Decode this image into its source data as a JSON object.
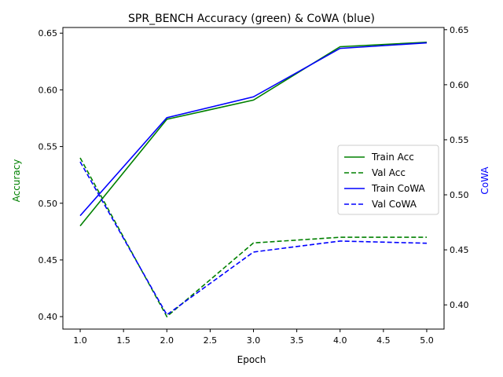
{
  "chart_data": {
    "type": "line",
    "title": "SPR_BENCH Accuracy (green) & CoWA (blue)",
    "xlabel": "Epoch",
    "ylabel_left": "Accuracy",
    "ylabel_right": "CoWA",
    "x": [
      1,
      2,
      3,
      4,
      5
    ],
    "xlim": [
      0.8,
      5.2
    ],
    "ylim_left": [
      0.389,
      0.655
    ],
    "ylim_right": [
      0.378,
      0.652
    ],
    "x_ticks": [
      "1.0",
      "1.5",
      "2.0",
      "2.5",
      "3.0",
      "3.5",
      "4.0",
      "4.5",
      "5.0"
    ],
    "y_ticks_left": [
      "0.40",
      "0.45",
      "0.50",
      "0.55",
      "0.60",
      "0.65"
    ],
    "y_ticks_right": [
      "0.40",
      "0.45",
      "0.50",
      "0.55",
      "0.60",
      "0.65"
    ],
    "grid": false,
    "legend_position": "center-right",
    "series": [
      {
        "name": "Train Acc",
        "axis": "left",
        "color": "#008000",
        "dash": "solid",
        "values": [
          0.48,
          0.574,
          0.591,
          0.638,
          0.642
        ]
      },
      {
        "name": "Val Acc",
        "axis": "left",
        "color": "#008000",
        "dash": "dashed",
        "values": [
          0.54,
          0.4,
          0.465,
          0.47,
          0.47
        ]
      },
      {
        "name": "Train CoWA",
        "axis": "right",
        "color": "#0000ff",
        "dash": "solid",
        "values": [
          0.481,
          0.57,
          0.589,
          0.633,
          0.638
        ]
      },
      {
        "name": "Val CoWA",
        "axis": "right",
        "color": "#0000ff",
        "dash": "dashed",
        "values": [
          0.53,
          0.391,
          0.448,
          0.458,
          0.456
        ]
      }
    ]
  }
}
